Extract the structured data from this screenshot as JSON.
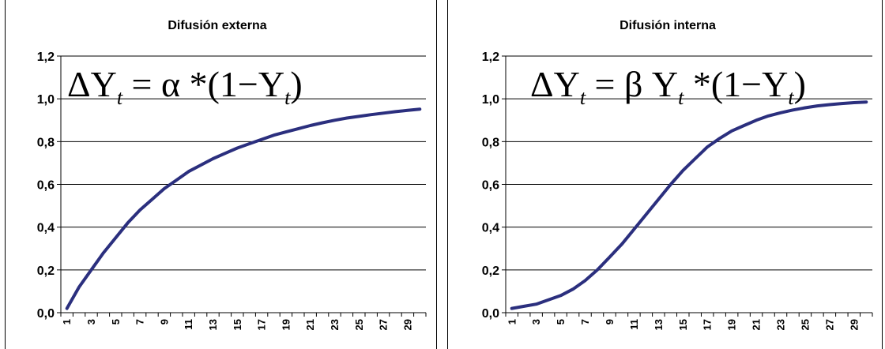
{
  "chart_data": [
    {
      "type": "line",
      "title": "Difusión externa",
      "formula": {
        "lhs": "ΔY",
        "sub1": "t",
        "mid": " = α *(1−Y",
        "sub2": "t",
        "end": ")"
      },
      "x": [
        1,
        2,
        3,
        4,
        5,
        6,
        7,
        8,
        9,
        10,
        11,
        12,
        13,
        14,
        15,
        16,
        17,
        18,
        19,
        20,
        21,
        22,
        23,
        24,
        25,
        26,
        27,
        28,
        29,
        30
      ],
      "x_tick_labels": [
        "1",
        "3",
        "5",
        "7",
        "9",
        "11",
        "13",
        "15",
        "17",
        "19",
        "21",
        "23",
        "25",
        "27",
        "29"
      ],
      "series": [
        {
          "values": [
            0.02,
            0.12,
            0.2,
            0.28,
            0.35,
            0.42,
            0.48,
            0.53,
            0.58,
            0.62,
            0.66,
            0.69,
            0.72,
            0.745,
            0.77,
            0.79,
            0.81,
            0.83,
            0.845,
            0.86,
            0.875,
            0.888,
            0.9,
            0.91,
            0.918,
            0.926,
            0.933,
            0.94,
            0.946,
            0.952
          ],
          "color": "#2b2f7e"
        }
      ],
      "y_tick_labels": [
        "0,0",
        "0,2",
        "0,4",
        "0,6",
        "0,8",
        "1,0",
        "1,2"
      ],
      "ylim": [
        0,
        1.2
      ],
      "grid": true,
      "legend": "none"
    },
    {
      "type": "line",
      "title": "Difusión interna",
      "formula": {
        "lhs": "ΔY",
        "sub1": "t",
        "mid": " = β Y",
        "sub2": "t",
        "end": " *(1−Y",
        "sub3": "t",
        "end2": ")"
      },
      "x": [
        1,
        2,
        3,
        4,
        5,
        6,
        7,
        8,
        9,
        10,
        11,
        12,
        13,
        14,
        15,
        16,
        17,
        18,
        19,
        20,
        21,
        22,
        23,
        24,
        25,
        26,
        27,
        28,
        29,
        30
      ],
      "x_tick_labels": [
        "1",
        "3",
        "5",
        "7",
        "9",
        "11",
        "13",
        "15",
        "17",
        "19",
        "21",
        "23",
        "25",
        "27",
        "29"
      ],
      "series": [
        {
          "values": [
            0.02,
            0.03,
            0.04,
            0.06,
            0.08,
            0.11,
            0.15,
            0.2,
            0.26,
            0.32,
            0.39,
            0.46,
            0.53,
            0.6,
            0.665,
            0.72,
            0.775,
            0.815,
            0.85,
            0.875,
            0.9,
            0.92,
            0.935,
            0.948,
            0.958,
            0.967,
            0.973,
            0.978,
            0.982,
            0.985
          ],
          "color": "#2b2f7e"
        }
      ],
      "y_tick_labels": [
        "0,0",
        "0,2",
        "0,4",
        "0,6",
        "0,8",
        "1,0",
        "1,2"
      ],
      "ylim": [
        0,
        1.2
      ],
      "grid": true,
      "legend": "none"
    }
  ]
}
